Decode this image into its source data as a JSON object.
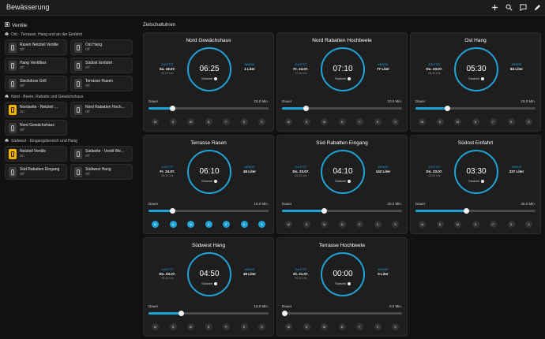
{
  "app": {
    "title": "Bewässerung"
  },
  "sidebar": {
    "title": "Ventile",
    "groups": [
      {
        "label": "Ost - Terrasse, Hang und an der Einfahrt",
        "devices": [
          {
            "name": "Rasen Netzteil Ventile",
            "state": "Off",
            "on": false
          },
          {
            "name": "Ost Hang",
            "state": "Off",
            "on": false
          },
          {
            "name": "Hang Ventilbox",
            "state": "Off",
            "on": false
          },
          {
            "name": "Südost Einfahrt",
            "state": "Off",
            "on": false
          },
          {
            "name": "Steckdose Grill",
            "state": "Off",
            "on": false
          },
          {
            "name": "Terrasse Rasen",
            "state": "Off",
            "on": false
          }
        ]
      },
      {
        "label": "Nord - Beete, Rabatte und Gewächshaus",
        "devices": [
          {
            "name": "Nordseite - Netzteil ...",
            "state": "On",
            "on": true
          },
          {
            "name": "Nord Rabatten Hoch...",
            "state": "Off",
            "on": false
          },
          {
            "name": "Nord Gewächshaus",
            "state": "Off",
            "on": false
          }
        ]
      },
      {
        "label": "Südwest - Eingangsbereich und Hang",
        "devices": [
          {
            "name": "Netzteil Ventile",
            "state": "On",
            "on": true
          },
          {
            "name": "Südseite - Ventil We...",
            "state": "Off",
            "on": false
          },
          {
            "name": "Süd Rabatten Eingang",
            "state": "Off",
            "on": false
          },
          {
            "name": "Südwest Hang",
            "state": "Off",
            "on": false
          }
        ]
      }
    ]
  },
  "schedules": {
    "title": "Zeitschaltuhren",
    "labels": {
      "last": "ZULETZT",
      "amount": "MENGE",
      "start": "Startzeit",
      "duration": "Dauer"
    },
    "days": [
      "M",
      "D",
      "M",
      "D",
      "F",
      "S",
      "S"
    ],
    "cards": [
      {
        "name": "Nord Gewächshaus",
        "time": "06:25",
        "last_date": "Sa. 18.07.",
        "last_time": "22:20 Uhr",
        "amount": "1 Liter",
        "duration": "10.0 Min.",
        "duration_fraction": 0.2,
        "days_on": [
          false,
          false,
          false,
          false,
          false,
          false,
          false
        ]
      },
      {
        "name": "Nord Rabatten Hochbeete",
        "time": "07:10",
        "last_date": "Fr. 24.07.",
        "last_time": "07:20 Uhr",
        "amount": "77 Liter",
        "duration": "10.0 Min.",
        "duration_fraction": 0.2,
        "days_on": [
          false,
          false,
          false,
          false,
          false,
          false,
          false
        ]
      },
      {
        "name": "Ost Hang",
        "time": "05:30",
        "last_date": "Do. 23.07.",
        "last_time": "05:45 Uhr",
        "amount": "84 Liter",
        "duration": "15.0 Min.",
        "duration_fraction": 0.26,
        "days_on": [
          false,
          false,
          false,
          false,
          false,
          false,
          false
        ]
      },
      {
        "name": "Terrasse Rasen",
        "time": "06:10",
        "last_date": "Fr. 24.07.",
        "last_time": "06:20 Uhr",
        "amount": "48 Liter",
        "duration": "10.0 Min.",
        "duration_fraction": 0.2,
        "days_on": [
          true,
          true,
          true,
          true,
          true,
          true,
          true
        ]
      },
      {
        "name": "Süd Rabatten Eingang",
        "time": "04:10",
        "last_date": "Do. 23.07.",
        "last_time": "04:30 Uhr",
        "amount": "142 Liter",
        "duration": "20.0 Min.",
        "duration_fraction": 0.35,
        "days_on": [
          false,
          false,
          false,
          false,
          false,
          false,
          false
        ]
      },
      {
        "name": "Südost Einfahrt",
        "time": "03:30",
        "last_date": "Do. 23.07.",
        "last_time": "03:55 Uhr",
        "amount": "227 Liter",
        "duration": "25.0 Min.",
        "duration_fraction": 0.42,
        "days_on": [
          false,
          false,
          false,
          false,
          false,
          false,
          false
        ]
      },
      {
        "name": "Südwest Hang",
        "time": "04:50",
        "last_date": "Do. 23.07.",
        "last_time": "05:05 Uhr",
        "amount": "49 Liter",
        "duration": "15.0 Min.",
        "duration_fraction": 0.27,
        "days_on": [
          false,
          false,
          false,
          false,
          false,
          false,
          false
        ]
      },
      {
        "name": "Terrasse Hochbeete",
        "time": "00:00",
        "last_date": "Di. 21.07.",
        "last_time": "00:00 Uhr",
        "amount": "0 Liter",
        "duration": "0.0 Min.",
        "duration_fraction": 0.0,
        "days_on": [
          false,
          false,
          false,
          false,
          false,
          false,
          false
        ]
      }
    ]
  },
  "colors": {
    "accent": "#1fa3d6",
    "on": "#f4b400",
    "card": "#1e1e1e",
    "background": "#111111"
  }
}
